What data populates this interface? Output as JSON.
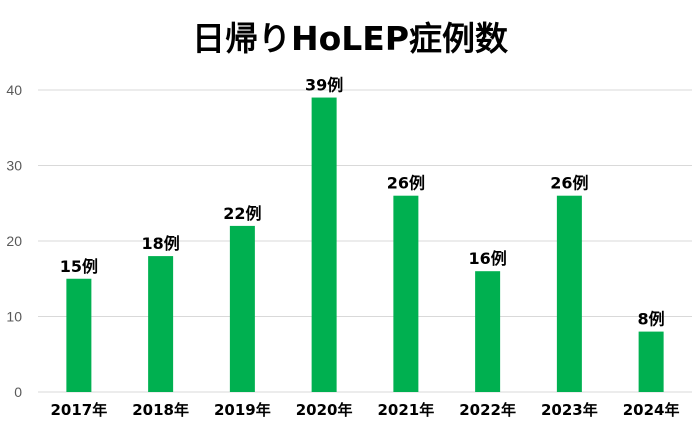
{
  "chart_data": {
    "type": "bar",
    "title": "日帰りHoLEP症例数",
    "xlabel": "",
    "ylabel": "",
    "categories": [
      "2017年",
      "2018年",
      "2019年",
      "2020年",
      "2021年",
      "2022年",
      "2023年",
      "2024年"
    ],
    "values": [
      15,
      18,
      22,
      39,
      26,
      16,
      26,
      8
    ],
    "data_labels": [
      "15例",
      "18例",
      "22例",
      "39例",
      "26例",
      "16例",
      "26例",
      "8例"
    ],
    "ylim": [
      0,
      40
    ],
    "yticks": [
      0,
      10,
      20,
      30,
      40
    ],
    "grid": true,
    "legend": "none",
    "bar_color": "#00b050"
  }
}
